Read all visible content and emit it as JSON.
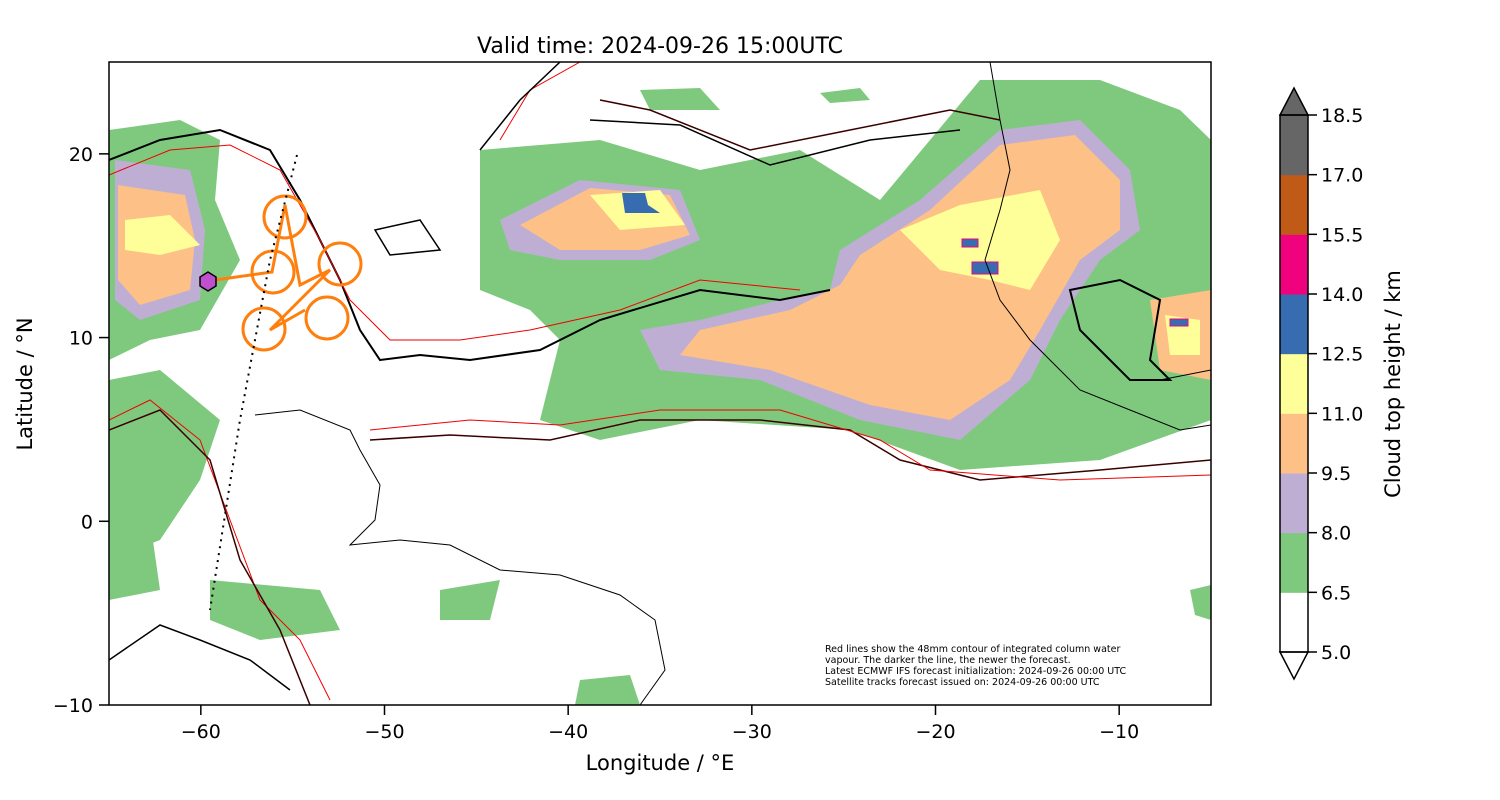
{
  "title": "Valid time: 2024-09-26 15:00UTC",
  "xlabel": "Longitude / °E",
  "ylabel": "Latitude / °N",
  "colorbar_label": "Cloud top height / km",
  "annotation": [
    "Red lines show the 48mm contour of integrated column water",
    "vapour. The darker the line, the newer the forecast.",
    "Latest ECMWF IFS forecast initialization: 2024-09-26 00:00 UTC",
    "Satellite tracks forecast issued on: 2024-09-26 00:00 UTC"
  ],
  "chart_data": {
    "type": "map",
    "title": "Valid time: 2024-09-26 15:00UTC",
    "xlim": [
      -65,
      -5
    ],
    "ylim": [
      -10,
      25
    ],
    "x_ticks": [
      -60,
      -50,
      -40,
      -30,
      -20,
      -10
    ],
    "x_tick_labels": [
      "−60",
      "−50",
      "−40",
      "−30",
      "−20",
      "−10"
    ],
    "y_ticks": [
      -10,
      0,
      10,
      20
    ],
    "y_tick_labels": [
      "−10",
      "0",
      "10",
      "20"
    ],
    "colorbar": {
      "levels": [
        5.0,
        6.5,
        8.0,
        9.5,
        11.0,
        12.5,
        14.0,
        15.5,
        17.0,
        18.5
      ],
      "level_labels": [
        "5.0",
        "6.5",
        "8.0",
        "9.5",
        "11.0",
        "12.5",
        "14.0",
        "15.5",
        "17.0",
        "18.5"
      ],
      "colors": [
        "#ffffff",
        "#7fc97f",
        "#beaed4",
        "#fdc086",
        "#ffff99",
        "#386cb0",
        "#f0027f",
        "#bf5b17",
        "#666666"
      ],
      "extend": "both"
    },
    "satellite_marker": {
      "lon": -59.5,
      "lat": 13.1,
      "color": "#c050d0"
    },
    "track_color": "#ff7f0e",
    "track_circles": [
      [
        -55.6,
        16.6
      ],
      [
        -56.4,
        13.6
      ],
      [
        -52.7,
        14.0
      ],
      [
        -56.8,
        10.5
      ],
      [
        -53.0,
        11.0
      ]
    ]
  }
}
